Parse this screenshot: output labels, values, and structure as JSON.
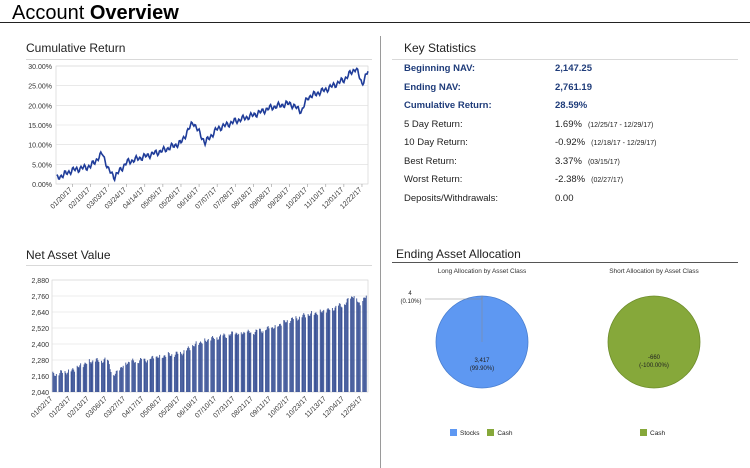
{
  "page": {
    "title_light": "Account ",
    "title_bold": "Overview"
  },
  "cumulative_return": {
    "title": "Cumulative Return",
    "y_ticks": [
      "30.00%",
      "25.00%",
      "20.00%",
      "15.00%",
      "10.00%",
      "5.00%",
      "0.00%"
    ],
    "x_ticks": [
      "01/20/17",
      "02/10/17",
      "03/03/17",
      "03/24/17",
      "04/14/17",
      "05/05/17",
      "05/26/17",
      "06/16/17",
      "07/07/17",
      "07/28/17",
      "08/18/17",
      "09/08/17",
      "09/29/17",
      "10/20/17",
      "11/10/17",
      "12/01/17",
      "12/22/17"
    ],
    "line_color": "#1f3c99"
  },
  "net_asset_value": {
    "title": "Net Asset Value",
    "y_ticks": [
      "2,880",
      "2,760",
      "2,640",
      "2,520",
      "2,400",
      "2,280",
      "2,160",
      "2,040"
    ],
    "x_ticks": [
      "01/02/17",
      "01/23/17",
      "02/13/17",
      "03/06/17",
      "03/27/17",
      "04/17/17",
      "05/08/17",
      "05/29/17",
      "06/19/17",
      "07/10/17",
      "07/31/17",
      "08/21/17",
      "09/11/17",
      "10/02/17",
      "10/23/17",
      "11/13/17",
      "12/04/17",
      "12/25/17"
    ],
    "bar_color": "#3a5296"
  },
  "chart_data": [
    {
      "type": "line",
      "title": "Cumulative Return",
      "ylim": [
        0,
        30
      ],
      "y_unit": "%",
      "grid": true,
      "series": [
        {
          "x": [
            "01/02/17",
            "01/20/17",
            "02/10/17",
            "02/24/17",
            "03/03/17",
            "03/10/17",
            "03/24/17",
            "04/14/17",
            "05/05/17",
            "05/26/17",
            "06/09/17",
            "06/23/17",
            "07/07/17",
            "07/28/17",
            "08/18/17",
            "09/08/17",
            "09/29/17",
            "10/13/17",
            "10/20/17",
            "11/10/17",
            "12/01/17",
            "12/15/17",
            "12/22/17",
            "12/29/17"
          ],
          "values": [
            1.5,
            3.5,
            4.5,
            7.8,
            3.5,
            1.8,
            5.5,
            7.0,
            8.5,
            10.5,
            15.8,
            10.5,
            14.0,
            16.0,
            17.5,
            19.5,
            20.5,
            18.5,
            22.0,
            24.0,
            26.5,
            29.5,
            25.5,
            28.59
          ]
        }
      ]
    },
    {
      "type": "bar",
      "title": "Net Asset Value",
      "ylim": [
        2040,
        2880
      ],
      "grid": true,
      "anchors": {
        "x": [
          "01/02/17",
          "01/23/17",
          "02/13/17",
          "03/06/17",
          "03/13/17",
          "03/27/17",
          "04/17/17",
          "05/08/17",
          "05/29/17",
          "06/19/17",
          "07/10/17",
          "07/31/17",
          "08/21/17",
          "09/11/17",
          "10/02/17",
          "10/23/17",
          "11/13/17",
          "12/04/17",
          "12/15/17",
          "12/22/17",
          "12/29/17"
        ],
        "values": [
          2170,
          2200,
          2270,
          2280,
          2160,
          2260,
          2280,
          2310,
          2330,
          2410,
          2450,
          2480,
          2490,
          2520,
          2580,
          2620,
          2650,
          2700,
          2770,
          2690,
          2761.19
        ]
      }
    },
    {
      "type": "pie",
      "title": "Long Allocation by Asset Class",
      "slices": [
        {
          "label": "Stocks",
          "value": 3417,
          "pct": "(99.90%)"
        },
        {
          "label": "Cash",
          "value": 4,
          "pct": "(0.10%)"
        }
      ]
    },
    {
      "type": "pie",
      "title": "Short Allocation by Asset Class",
      "slices": [
        {
          "label": "Cash",
          "value": -660,
          "pct": "(-100.00%)"
        }
      ]
    }
  ],
  "key_statistics": {
    "title": "Key Statistics",
    "rows": [
      {
        "label": "Beginning NAV:",
        "value": "2,147.25",
        "range": ""
      },
      {
        "label": "Ending NAV:",
        "value": "2,761.19",
        "range": ""
      },
      {
        "label": "Cumulative Return:",
        "value": "28.59%",
        "range": ""
      },
      {
        "label": "5 Day Return:",
        "value": "1.69%",
        "range": "(12/25/17 - 12/29/17)"
      },
      {
        "label": "10 Day Return:",
        "value": "-0.92%",
        "range": "(12/18/17 - 12/29/17)"
      },
      {
        "label": "Best Return:",
        "value": "3.37%",
        "range": "(03/15/17)"
      },
      {
        "label": "Worst Return:",
        "value": "-2.38%",
        "range": "(02/27/17)"
      },
      {
        "label": "Deposits/Withdrawals:",
        "value": "0.00",
        "range": ""
      }
    ]
  },
  "allocation": {
    "title": "Ending Asset Allocation",
    "long": {
      "title": "Long Allocation by Asset Class",
      "main_value": "3,417",
      "main_pct": "(99.90%)",
      "small_value": "4",
      "small_pct": "(0.10%)",
      "legend": [
        "Stocks",
        "Cash"
      ],
      "colors": {
        "Stocks": "#5e98f2",
        "Cash": "#86a83a"
      }
    },
    "short": {
      "title": "Short Allocation by Asset Class",
      "main_value": "-660",
      "main_pct": "(-100.00%)",
      "legend": [
        "Cash"
      ],
      "colors": {
        "Cash": "#86a83a"
      }
    }
  }
}
